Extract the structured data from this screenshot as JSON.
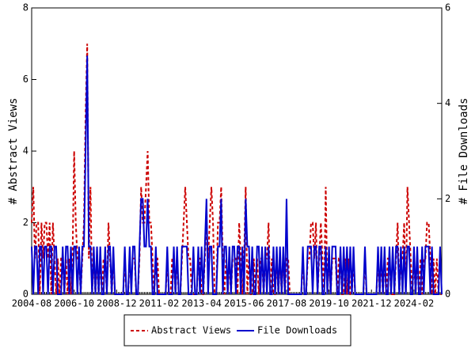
{
  "chart_data": {
    "type": "line",
    "categories": [
      "2004-08",
      null,
      null,
      null,
      null,
      null,
      null,
      null,
      null,
      null,
      null,
      null,
      null,
      null,
      null,
      null,
      null,
      null,
      null,
      null,
      null,
      null,
      null,
      null,
      null,
      null,
      "2006-10",
      null,
      null,
      null,
      null,
      null,
      null,
      null,
      null,
      null,
      null,
      null,
      null,
      null,
      null,
      null,
      null,
      null,
      null,
      null,
      null,
      null,
      null,
      null,
      null,
      null,
      "2008-12",
      null,
      null,
      null,
      null,
      null,
      null,
      null,
      null,
      null,
      null,
      null,
      null,
      null,
      null,
      null,
      null,
      null,
      null,
      null,
      null,
      null,
      null,
      null,
      null,
      null,
      "2011-02",
      null,
      null,
      null,
      null,
      null,
      null,
      null,
      null,
      null,
      null,
      null,
      null,
      null,
      null,
      null,
      null,
      null,
      null,
      null,
      null,
      null,
      null,
      null,
      null,
      null,
      "2013-04",
      null,
      null,
      null,
      null,
      null,
      null,
      null,
      null,
      null,
      null,
      null,
      null,
      null,
      null,
      null,
      null,
      null,
      null,
      null,
      null,
      null,
      null,
      null,
      null,
      null,
      "2015-06",
      null,
      null,
      null,
      null,
      null,
      null,
      null,
      null,
      null,
      null,
      null,
      null,
      null,
      null,
      null,
      null,
      null,
      null,
      null,
      null,
      null,
      null,
      null,
      null,
      null,
      "2017-08",
      null,
      null,
      null,
      null,
      null,
      null,
      null,
      null,
      null,
      null,
      null,
      null,
      null,
      null,
      null,
      null,
      null,
      null,
      null,
      null,
      null,
      null,
      null,
      null,
      null,
      "2019-10",
      null,
      null,
      null,
      null,
      null,
      null,
      null,
      null,
      null,
      null,
      null,
      null,
      null,
      null,
      null,
      null,
      null,
      null,
      null,
      null,
      null,
      null,
      null,
      null,
      null,
      "2021-12",
      null,
      null,
      null,
      null,
      null,
      null,
      null,
      null,
      null,
      null,
      null,
      null,
      null,
      null,
      null,
      null,
      null,
      null,
      null,
      null,
      null,
      null,
      null,
      null,
      null,
      "2024-02",
      null,
      null,
      null,
      null,
      null,
      null,
      null,
      null,
      null,
      null,
      null,
      null,
      null,
      null,
      null,
      null,
      null
    ],
    "series": [
      {
        "name": "Abstract Views",
        "color": "#cc0000",
        "dash": true,
        "values": [
          2,
          3,
          1,
          2,
          2,
          0,
          2,
          1,
          2,
          2,
          1,
          2,
          0,
          2,
          1,
          0,
          1,
          0,
          1,
          1,
          0,
          1,
          0,
          1,
          0,
          1,
          4,
          2,
          1,
          1,
          0,
          1,
          2,
          5,
          7,
          1,
          3,
          0,
          1,
          0,
          1,
          0,
          1,
          0,
          1,
          1,
          0,
          2,
          1,
          0,
          1,
          0,
          0,
          0,
          0,
          0,
          0,
          1,
          0,
          0,
          1,
          1,
          1,
          1,
          0,
          0,
          1,
          3,
          2,
          2,
          3,
          4,
          2,
          2,
          1,
          0,
          1,
          1,
          0,
          0,
          0,
          0,
          0,
          1,
          0,
          0,
          1,
          1,
          0,
          1,
          0,
          0,
          1,
          2,
          3,
          2,
          1,
          1,
          0,
          0,
          0,
          0,
          1,
          1,
          0,
          0,
          1,
          2,
          1,
          2,
          3,
          2,
          0,
          0,
          2,
          2,
          3,
          1,
          0,
          1,
          0,
          1,
          0,
          1,
          1,
          1,
          0,
          2,
          1,
          0,
          1,
          3,
          0,
          1,
          0,
          0,
          1,
          0,
          1,
          0,
          1,
          1,
          0,
          1,
          1,
          2,
          0,
          1,
          0,
          0,
          1,
          0,
          1,
          0,
          1,
          0,
          1,
          1,
          0,
          0,
          0,
          0,
          0,
          0,
          0,
          0,
          1,
          0,
          0,
          1,
          1,
          2,
          2,
          1,
          2,
          0,
          1,
          2,
          1,
          0,
          3,
          0,
          1,
          0,
          1,
          1,
          1,
          0,
          1,
          1,
          0,
          0,
          1,
          0,
          1,
          0,
          0,
          1,
          0,
          0,
          0,
          0,
          0,
          0,
          1,
          0,
          0,
          0,
          0,
          0,
          0,
          0,
          1,
          0,
          1,
          0,
          1,
          0,
          1,
          1,
          0,
          0,
          0,
          1,
          2,
          0,
          1,
          1,
          2,
          0,
          3,
          2,
          1,
          0,
          1,
          0,
          1,
          0,
          1,
          0,
          1,
          1,
          2,
          2,
          1,
          0,
          1,
          0,
          1,
          0,
          0,
          0
        ]
      },
      {
        "name": "File Downloads",
        "color": "#0000cc",
        "dash": false,
        "axis": "y2",
        "values": [
          1,
          0,
          1,
          1,
          0,
          1,
          1,
          0,
          1,
          1,
          0,
          1,
          1,
          0,
          1,
          1,
          0,
          0,
          0,
          1,
          0,
          1,
          1,
          0,
          1,
          0,
          1,
          1,
          0,
          1,
          0,
          1,
          1,
          3,
          5,
          1,
          1,
          0,
          1,
          0,
          1,
          0,
          1,
          0,
          0,
          1,
          0,
          1,
          1,
          0,
          1,
          0,
          0,
          0,
          0,
          0,
          0,
          1,
          0,
          0,
          1,
          0,
          1,
          1,
          0,
          0,
          1,
          2,
          2,
          1,
          1,
          2,
          1,
          1,
          0,
          0,
          1,
          0,
          0,
          0,
          0,
          0,
          0,
          1,
          0,
          0,
          0,
          1,
          0,
          1,
          0,
          0,
          1,
          1,
          1,
          1,
          0,
          0,
          0,
          1,
          0,
          0,
          1,
          0,
          1,
          0,
          1,
          2,
          0,
          1,
          1,
          0,
          0,
          0,
          1,
          1,
          2,
          0,
          1,
          1,
          0,
          1,
          0,
          1,
          1,
          0,
          1,
          1,
          0,
          1,
          0,
          2,
          1,
          1,
          0,
          1,
          0,
          0,
          1,
          1,
          0,
          1,
          0,
          1,
          0,
          1,
          0,
          0,
          1,
          0,
          1,
          0,
          1,
          0,
          1,
          0,
          2,
          0,
          0,
          0,
          0,
          0,
          0,
          0,
          0,
          0,
          1,
          0,
          0,
          1,
          1,
          1,
          0,
          1,
          1,
          0,
          1,
          1,
          0,
          0,
          1,
          0,
          1,
          0,
          1,
          1,
          1,
          0,
          0,
          1,
          0,
          1,
          0,
          1,
          0,
          1,
          0,
          1,
          0,
          0,
          0,
          0,
          0,
          0,
          1,
          0,
          0,
          0,
          0,
          0,
          0,
          0,
          1,
          0,
          1,
          0,
          1,
          0,
          0,
          1,
          0,
          1,
          0,
          1,
          1,
          0,
          1,
          0,
          1,
          0,
          1,
          1,
          0,
          0,
          1,
          0,
          1,
          0,
          0,
          1,
          0,
          1,
          1,
          1,
          0,
          1,
          0,
          0,
          0,
          0,
          1,
          0
        ]
      }
    ],
    "ylabel": "# Abstract Views",
    "y2label": "# File Downloads",
    "ylim": [
      0,
      8
    ],
    "yticks": [
      0,
      2,
      4,
      6,
      8
    ],
    "y2lim": [
      0,
      6
    ],
    "y2ticks": [
      0,
      2,
      4,
      6
    ]
  }
}
